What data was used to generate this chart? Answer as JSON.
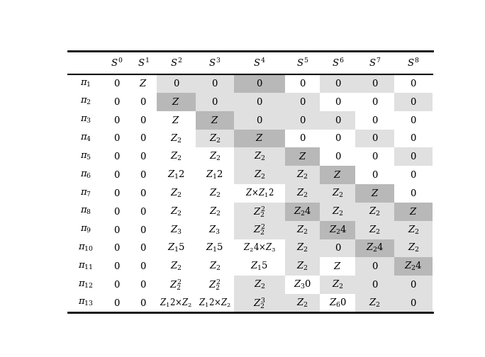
{
  "col_headers": [
    "",
    "S^0",
    "S^1",
    "S^2",
    "S^3",
    "S^4",
    "S^5",
    "S^6",
    "S^7",
    "S^8"
  ],
  "row_headers": [
    "π_1",
    "π_2",
    "π_3",
    "π_4",
    "π_5",
    "π_6",
    "π_7",
    "π_8",
    "π_9",
    "π_{10}",
    "π_{11}",
    "π_{12}",
    "π_{13}"
  ],
  "cells": [
    [
      "0",
      "ℤ",
      "0",
      "0",
      "0",
      "0",
      "0",
      "0",
      "0"
    ],
    [
      "0",
      "0",
      "ℤ",
      "0",
      "0",
      "0",
      "0",
      "0",
      "0"
    ],
    [
      "0",
      "0",
      "ℤ",
      "ℤ",
      "0",
      "0",
      "0",
      "0",
      "0"
    ],
    [
      "0",
      "0",
      "ℤ_2",
      "ℤ_2",
      "ℤ",
      "0",
      "0",
      "0",
      "0"
    ],
    [
      "0",
      "0",
      "ℤ_2",
      "ℤ_2",
      "ℤ_2",
      "ℤ",
      "0",
      "0",
      "0"
    ],
    [
      "0",
      "0",
      "ℤ_12",
      "ℤ_12",
      "ℤ_2",
      "ℤ_2",
      "ℤ",
      "0",
      "0"
    ],
    [
      "0",
      "0",
      "ℤ_2",
      "ℤ_2",
      "ℤ×ℤ_12",
      "ℤ_2",
      "ℤ_2",
      "ℤ",
      "0"
    ],
    [
      "0",
      "0",
      "ℤ_2",
      "ℤ_2",
      "ℤ_2^2",
      "ℤ_24",
      "ℤ_2",
      "ℤ_2",
      "ℤ"
    ],
    [
      "0",
      "0",
      "ℤ_3",
      "ℤ_3",
      "ℤ_2^2",
      "ℤ_2",
      "ℤ_24",
      "ℤ_2",
      "ℤ_2"
    ],
    [
      "0",
      "0",
      "ℤ_15",
      "ℤ_15",
      "ℤ_24×ℤ_3",
      "ℤ_2",
      "0",
      "ℤ_24",
      "ℤ_2"
    ],
    [
      "0",
      "0",
      "ℤ_2",
      "ℤ_2",
      "ℤ_15",
      "ℤ_2",
      "ℤ",
      "0",
      "ℤ_24"
    ],
    [
      "0",
      "0",
      "ℤ_2^2",
      "ℤ_2^2",
      "ℤ_2",
      "ℤ_30",
      "ℤ_2",
      "0",
      "0"
    ],
    [
      "0",
      "0",
      "ℤ_12×ℤ_2",
      "ℤ_12×ℤ_2",
      "ℤ_2^3",
      "ℤ_2",
      "ℤ_60",
      "ℤ_2",
      "0"
    ]
  ],
  "cell_colors": [
    [
      "w",
      "w",
      "l",
      "l",
      "dk",
      "w",
      "l",
      "l",
      "w"
    ],
    [
      "w",
      "w",
      "dk",
      "l",
      "l",
      "l",
      "w",
      "w",
      "l"
    ],
    [
      "w",
      "w",
      "w",
      "dk",
      "l",
      "l",
      "l",
      "w",
      "w"
    ],
    [
      "w",
      "w",
      "w",
      "l",
      "dk",
      "w",
      "w",
      "l",
      "w"
    ],
    [
      "w",
      "w",
      "w",
      "w",
      "l",
      "dk",
      "w",
      "w",
      "l"
    ],
    [
      "w",
      "w",
      "w",
      "w",
      "l",
      "l",
      "dk",
      "w",
      "w"
    ],
    [
      "w",
      "w",
      "w",
      "w",
      "w",
      "l",
      "l",
      "dk",
      "w"
    ],
    [
      "w",
      "w",
      "w",
      "w",
      "l",
      "dk",
      "l",
      "l",
      "dk"
    ],
    [
      "w",
      "w",
      "w",
      "w",
      "l",
      "l",
      "dk",
      "l",
      "l"
    ],
    [
      "w",
      "w",
      "w",
      "w",
      "w",
      "l",
      "l",
      "dk",
      "l"
    ],
    [
      "w",
      "w",
      "w",
      "w",
      "w",
      "l",
      "w",
      "l",
      "dk"
    ],
    [
      "w",
      "w",
      "w",
      "w",
      "l",
      "w",
      "l",
      "l",
      "l"
    ],
    [
      "w",
      "w",
      "w",
      "w",
      "l",
      "l",
      "w",
      "l",
      "l"
    ]
  ],
  "color_map": {
    "w": "#ffffff",
    "l": "#e0e0e0",
    "dk": "#b8b8b8"
  },
  "figsize": [
    6.84,
    5.04
  ],
  "dpi": 100
}
